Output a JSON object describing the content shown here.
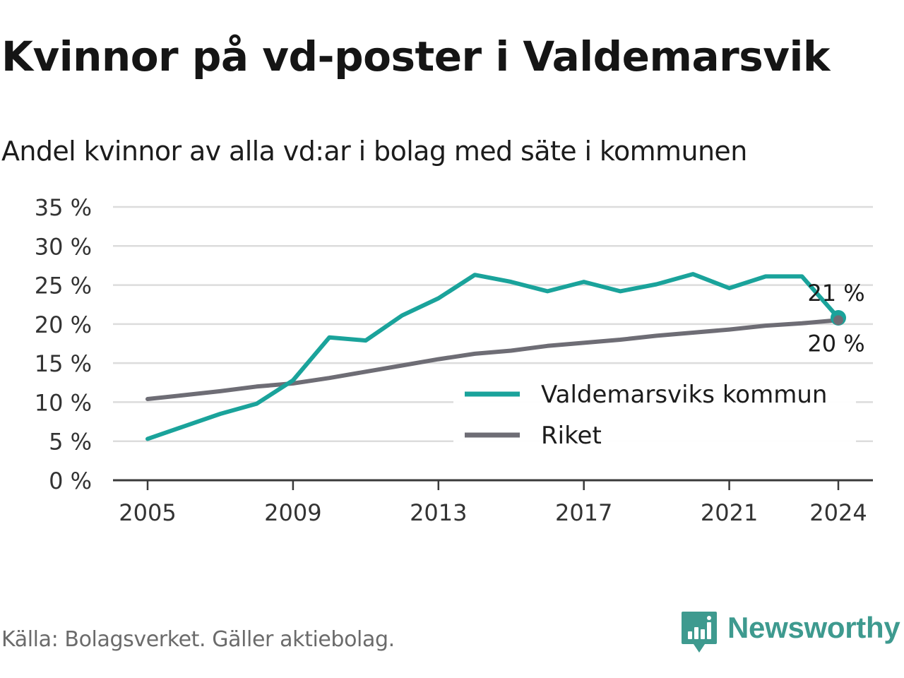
{
  "title": "Kvinnor på vd-poster i Valdemarsvik",
  "subtitle": "Andel kvinnor av alla vd:ar i bolag med säte i kommunen",
  "source": "Källa: Bolagsverket. Gäller aktiebolag.",
  "brand": {
    "name": "Newsworthy",
    "icon": "newsworthy-logo-icon",
    "color": "#3e9a8f"
  },
  "chart_data": {
    "type": "line",
    "x": [
      2005,
      2006,
      2007,
      2008,
      2009,
      2010,
      2011,
      2012,
      2013,
      2014,
      2015,
      2016,
      2017,
      2018,
      2019,
      2020,
      2021,
      2022,
      2023,
      2024
    ],
    "x_ticks": [
      2005,
      2009,
      2013,
      2017,
      2021,
      2024
    ],
    "x_tick_labels": [
      "2005",
      "2009",
      "2013",
      "2017",
      "2021",
      "2024"
    ],
    "ylim": [
      0,
      35
    ],
    "y_ticks": [
      0,
      5,
      10,
      15,
      20,
      25,
      30,
      35
    ],
    "y_tick_labels": [
      "0 %",
      "5 %",
      "10 %",
      "15 %",
      "20 %",
      "25 %",
      "30 %",
      "35 %"
    ],
    "grid": true,
    "legend_position": "bottom-right",
    "series": [
      {
        "name": "Valdemarsviks kommun",
        "color": "#1aa39b",
        "values": [
          5.3,
          6.9,
          8.5,
          9.8,
          12.8,
          18.3,
          17.9,
          21.1,
          23.3,
          26.3,
          25.4,
          24.2,
          25.4,
          24.2,
          25.1,
          26.4,
          24.6,
          26.1,
          26.1,
          20.8
        ],
        "end_label": "21 %"
      },
      {
        "name": "Riket",
        "color": "#6e6d75",
        "values": [
          10.4,
          10.9,
          11.4,
          12.0,
          12.4,
          13.1,
          13.9,
          14.7,
          15.5,
          16.2,
          16.6,
          17.2,
          17.6,
          18.0,
          18.5,
          18.9,
          19.3,
          19.8,
          20.1,
          20.5
        ],
        "end_label": "20 %"
      }
    ]
  }
}
